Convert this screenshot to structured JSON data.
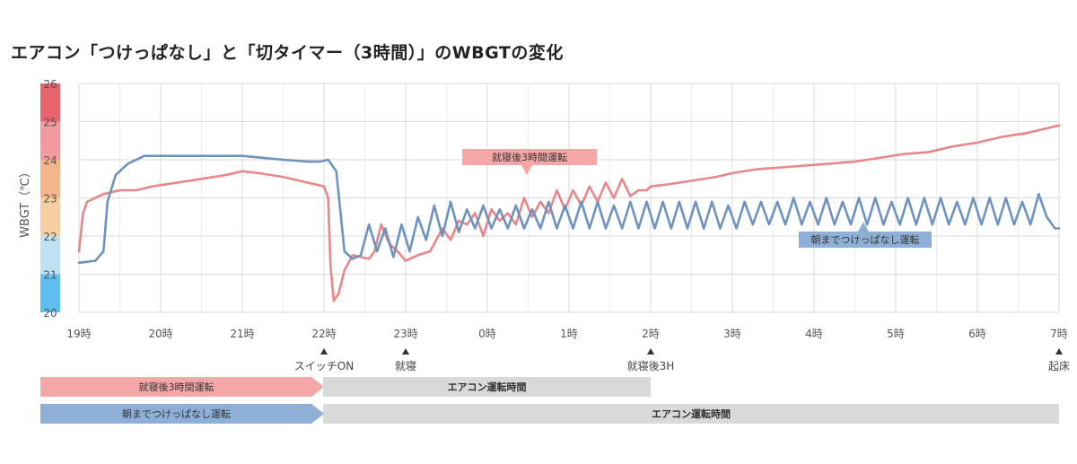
{
  "title": "エアコン「つけっぱなし」と「切タイマー（3時間）」のWBGTの変化",
  "chart_data": {
    "type": "line",
    "ylabel": "WBGT（℃）",
    "ylim": [
      20,
      26
    ],
    "yticks": [
      "20",
      "21",
      "22",
      "23",
      "24",
      "25",
      "26"
    ],
    "categories": [
      "19時",
      "20時",
      "21時",
      "22時",
      "23時",
      "0時",
      "1時",
      "2時",
      "3時",
      "4時",
      "5時",
      "6時",
      "7時"
    ],
    "colors": {
      "timer": "#e8868a",
      "continuous": "#6f93bf",
      "grid": "#d9d9d9"
    },
    "series": [
      {
        "name": "就寝後3時間運転",
        "color": "#e8868a",
        "x": [
          0.0,
          0.05,
          0.1,
          0.2,
          0.3,
          0.5,
          0.7,
          0.9,
          1.2,
          1.5,
          1.8,
          2.0,
          2.2,
          2.5,
          2.8,
          3.0,
          3.05,
          3.08,
          3.12,
          3.18,
          3.25,
          3.35,
          3.45,
          3.55,
          3.62,
          3.7,
          3.8,
          3.9,
          4.0,
          4.15,
          4.3,
          4.45,
          4.55,
          4.65,
          4.75,
          4.85,
          4.95,
          5.05,
          5.15,
          5.25,
          5.35,
          5.45,
          5.55,
          5.65,
          5.75,
          5.85,
          5.95,
          6.05,
          6.15,
          6.25,
          6.35,
          6.45,
          6.55,
          6.65,
          6.75,
          6.85,
          6.95,
          7.0,
          7.2,
          7.5,
          7.8,
          8.0,
          8.3,
          8.6,
          8.9,
          9.2,
          9.5,
          9.8,
          10.1,
          10.4,
          10.7,
          11.0,
          11.3,
          11.6,
          11.9,
          12.0
        ],
        "values": [
          21.6,
          22.6,
          22.9,
          23.0,
          23.1,
          23.2,
          23.2,
          23.3,
          23.4,
          23.5,
          23.6,
          23.7,
          23.65,
          23.55,
          23.4,
          23.3,
          23.0,
          21.2,
          20.3,
          20.5,
          21.1,
          21.5,
          21.45,
          21.4,
          21.6,
          22.3,
          21.8,
          21.6,
          21.35,
          21.5,
          21.6,
          22.2,
          21.9,
          22.4,
          22.3,
          22.6,
          22.0,
          22.7,
          22.4,
          22.6,
          22.3,
          23.0,
          22.5,
          22.9,
          22.6,
          23.2,
          22.7,
          23.2,
          22.8,
          23.3,
          22.9,
          23.4,
          23.0,
          23.5,
          23.05,
          23.2,
          23.2,
          23.3,
          23.35,
          23.45,
          23.55,
          23.65,
          23.75,
          23.8,
          23.85,
          23.9,
          23.95,
          24.05,
          24.15,
          24.2,
          24.35,
          24.45,
          24.6,
          24.7,
          24.85,
          24.9
        ]
      },
      {
        "name": "朝までつけっぱなし運転",
        "color": "#6f93bf",
        "x": [
          0.0,
          0.2,
          0.3,
          0.35,
          0.45,
          0.6,
          0.8,
          1.0,
          1.2,
          1.5,
          2.0,
          2.5,
          2.8,
          2.95,
          3.05,
          3.15,
          3.25,
          3.35,
          3.45,
          3.55,
          3.65,
          3.75,
          3.85,
          3.95,
          4.05,
          4.15,
          4.25,
          4.35,
          4.45,
          4.55,
          4.65,
          4.75,
          4.85,
          4.95,
          5.05,
          5.15,
          5.25,
          5.35,
          5.45,
          5.55,
          5.65,
          5.75,
          5.85,
          5.95,
          6.05,
          6.15,
          6.25,
          6.35,
          6.45,
          6.55,
          6.65,
          6.75,
          6.85,
          6.95,
          7.05,
          7.15,
          7.25,
          7.35,
          7.45,
          7.55,
          7.65,
          7.75,
          7.85,
          7.95,
          8.05,
          8.15,
          8.25,
          8.35,
          8.45,
          8.55,
          8.65,
          8.75,
          8.85,
          8.95,
          9.05,
          9.15,
          9.25,
          9.35,
          9.45,
          9.55,
          9.65,
          9.75,
          9.85,
          9.95,
          10.05,
          10.15,
          10.25,
          10.35,
          10.45,
          10.55,
          10.65,
          10.75,
          10.85,
          10.95,
          11.05,
          11.15,
          11.25,
          11.35,
          11.45,
          11.55,
          11.65,
          11.75,
          11.85,
          11.95,
          12.0
        ],
        "values": [
          21.3,
          21.35,
          21.6,
          22.9,
          23.6,
          23.9,
          24.1,
          24.1,
          24.1,
          24.1,
          24.1,
          24.0,
          23.95,
          23.95,
          24.0,
          23.7,
          21.6,
          21.4,
          21.5,
          22.3,
          21.6,
          22.2,
          21.45,
          22.3,
          21.6,
          22.5,
          21.9,
          22.8,
          22.0,
          22.9,
          22.1,
          22.7,
          22.2,
          22.8,
          22.2,
          22.7,
          22.2,
          22.8,
          22.2,
          22.7,
          22.2,
          22.9,
          22.2,
          22.8,
          22.2,
          22.9,
          22.2,
          22.9,
          22.2,
          22.8,
          22.2,
          22.9,
          22.2,
          22.9,
          22.2,
          22.9,
          22.2,
          22.9,
          22.2,
          22.9,
          22.2,
          22.9,
          22.2,
          22.8,
          22.2,
          22.9,
          22.3,
          22.9,
          22.3,
          22.9,
          22.3,
          23.0,
          22.3,
          22.9,
          22.3,
          23.0,
          22.3,
          22.9,
          22.3,
          23.0,
          22.3,
          23.0,
          22.3,
          22.9,
          22.3,
          23.0,
          22.3,
          23.0,
          22.3,
          23.0,
          22.3,
          22.9,
          22.3,
          23.0,
          22.3,
          23.0,
          22.3,
          23.0,
          22.3,
          22.9,
          22.3,
          23.1,
          22.5,
          22.2,
          22.2
        ]
      }
    ],
    "annotations": [
      {
        "text": "就寝後3時間運転",
        "color": "#f4a7a6",
        "series": 0,
        "at_x": 5.5
      },
      {
        "text": "朝までつけっぱなし運転",
        "color": "#8fb0d6",
        "series": 1,
        "at_x": 9.5
      }
    ],
    "markers": [
      {
        "text": "スイッチON",
        "x": 3
      },
      {
        "text": "就寝",
        "x": 4
      },
      {
        "text": "就寝後3H",
        "x": 7
      },
      {
        "text": "起床",
        "x": 12
      }
    ]
  },
  "timeline": {
    "row1": {
      "active": "就寝後3時間運転",
      "running": "エアコン運転時間"
    },
    "row2": {
      "active": "朝までつけっぱなし運転",
      "running": "エアコン運転時間"
    }
  }
}
